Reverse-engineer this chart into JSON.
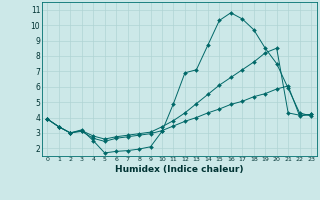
{
  "xlabel": "Humidex (Indice chaleur)",
  "bg_color": "#cce8e8",
  "grid_color": "#b0d4d4",
  "line_color": "#006868",
  "xlim": [
    -0.5,
    23.5
  ],
  "ylim": [
    1.5,
    11.5
  ],
  "xticks": [
    0,
    1,
    2,
    3,
    4,
    5,
    6,
    7,
    8,
    9,
    10,
    11,
    12,
    13,
    14,
    15,
    16,
    17,
    18,
    19,
    20,
    21,
    22,
    23
  ],
  "yticks": [
    2,
    3,
    4,
    5,
    6,
    7,
    8,
    9,
    10,
    11
  ],
  "line1_x": [
    0,
    1,
    2,
    3,
    4,
    5,
    6,
    7,
    8,
    9,
    10,
    11,
    12,
    13,
    14,
    15,
    16,
    17,
    18,
    19,
    20,
    21,
    22,
    23
  ],
  "line1_y": [
    3.9,
    3.4,
    3.0,
    3.2,
    2.5,
    1.7,
    1.8,
    1.85,
    1.95,
    2.1,
    3.1,
    4.9,
    6.9,
    7.1,
    8.7,
    10.3,
    10.8,
    10.4,
    9.7,
    8.5,
    7.5,
    5.9,
    4.3,
    4.1
  ],
  "line2_x": [
    0,
    1,
    2,
    3,
    4,
    5,
    6,
    7,
    8,
    9,
    10,
    11,
    12,
    13,
    14,
    15,
    16,
    17,
    18,
    19,
    20,
    21,
    22,
    23
  ],
  "line2_y": [
    3.9,
    3.4,
    3.0,
    3.15,
    2.8,
    2.6,
    2.75,
    2.85,
    2.95,
    3.05,
    3.4,
    3.8,
    4.3,
    4.9,
    5.5,
    6.1,
    6.6,
    7.1,
    7.6,
    8.2,
    8.5,
    4.3,
    4.15,
    4.2
  ],
  "line3_x": [
    0,
    1,
    2,
    3,
    4,
    5,
    6,
    7,
    8,
    9,
    10,
    11,
    12,
    13,
    14,
    15,
    16,
    17,
    18,
    19,
    20,
    21,
    22,
    23
  ],
  "line3_y": [
    3.9,
    3.4,
    3.0,
    3.1,
    2.65,
    2.45,
    2.65,
    2.75,
    2.85,
    2.95,
    3.15,
    3.45,
    3.75,
    4.0,
    4.3,
    4.55,
    4.85,
    5.05,
    5.35,
    5.55,
    5.85,
    6.05,
    4.1,
    4.2
  ]
}
